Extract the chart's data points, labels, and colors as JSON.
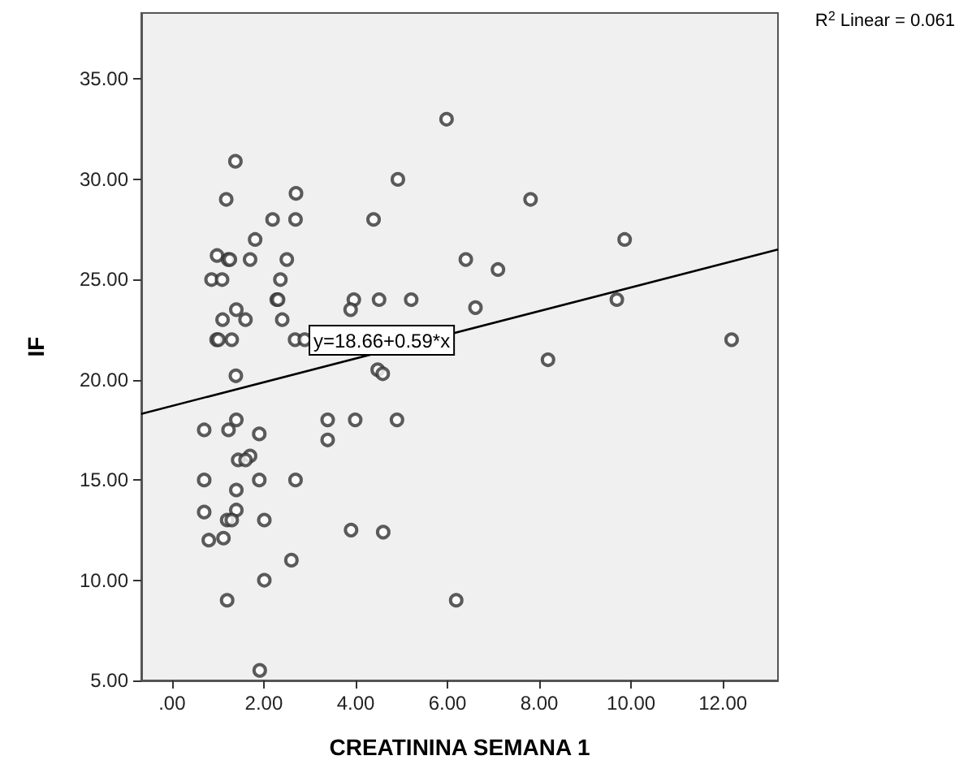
{
  "chart_data": {
    "type": "scatter",
    "xlabel": "CREATININA SEMANA 1",
    "ylabel": "IF",
    "grid": false,
    "xlim": [
      -0.67,
      13.2
    ],
    "ylim": [
      5,
      38.3
    ],
    "xticks": [
      {
        "value": 0,
        "label": ".00"
      },
      {
        "value": 2,
        "label": "2.00"
      },
      {
        "value": 4,
        "label": "4.00"
      },
      {
        "value": 6,
        "label": "6.00"
      },
      {
        "value": 8,
        "label": "8.00"
      },
      {
        "value": 10,
        "label": "10.00"
      },
      {
        "value": 12,
        "label": "12.00"
      }
    ],
    "yticks": [
      {
        "value": 5,
        "label": "5.00"
      },
      {
        "value": 10,
        "label": "10.00"
      },
      {
        "value": 15,
        "label": "15.00"
      },
      {
        "value": 20,
        "label": "20.00"
      },
      {
        "value": 25,
        "label": "25.00"
      },
      {
        "value": 30,
        "label": "30.00"
      },
      {
        "value": 35,
        "label": "35.00"
      }
    ],
    "annotations": [
      "y=18.66+0.59*x",
      "R$^{2}$ Linear = 0.061"
    ],
    "series": [
      {
        "marker": "circle",
        "color": "#333333",
        "x": [
          5.98,
          1.38,
          4.92,
          1.18,
          2.7,
          2.19,
          2.69,
          4.39,
          1.81,
          0.98,
          1.22,
          1.26,
          1.7,
          2.5,
          6.4,
          0.86,
          1.09,
          2.36,
          2.28,
          2.31,
          3.96,
          4.51,
          5.21,
          3.89,
          6.61,
          1.4,
          1.1,
          1.6,
          2.4,
          0.97,
          1.01,
          1.3,
          2.68,
          2.89,
          1.39,
          4.48,
          4.59,
          7.81,
          9.86,
          7.1,
          9.69,
          12.19,
          8.19,
          1.4,
          0.7,
          1.23,
          1.9,
          3.39,
          3.99,
          4.9,
          3.39,
          1.7,
          1.44,
          1.6,
          0.7,
          1.9,
          2.69,
          1.4,
          0.7,
          1.4,
          1.2,
          1.3,
          2.01,
          0.8,
          1.12,
          3.9,
          4.6,
          2.6,
          2.01,
          1.2,
          6.19,
          1.91
        ],
        "values": [
          33,
          30.9,
          30,
          29,
          29.3,
          28,
          28,
          28,
          27,
          26.2,
          26,
          26,
          26,
          26,
          26,
          25,
          25,
          25,
          24,
          24,
          24,
          24,
          24,
          23.5,
          23.6,
          23.5,
          23,
          23,
          23,
          22,
          22,
          22,
          22,
          22,
          20.2,
          20.5,
          20.3,
          29,
          27,
          25.5,
          24,
          22,
          21,
          18,
          17.5,
          17.5,
          17.3,
          18,
          18,
          18,
          17,
          16.2,
          16,
          16,
          15,
          15,
          15,
          14.5,
          13.4,
          13.5,
          13,
          13,
          13,
          12,
          12.1,
          12.5,
          12.4,
          11,
          10,
          9,
          9,
          5.5
        ]
      },
      {
        "type": "line",
        "marker": "none",
        "color": "#000000",
        "x": [
          -0.67,
          13.2
        ],
        "values": [
          18.3,
          26.5
        ]
      }
    ]
  }
}
